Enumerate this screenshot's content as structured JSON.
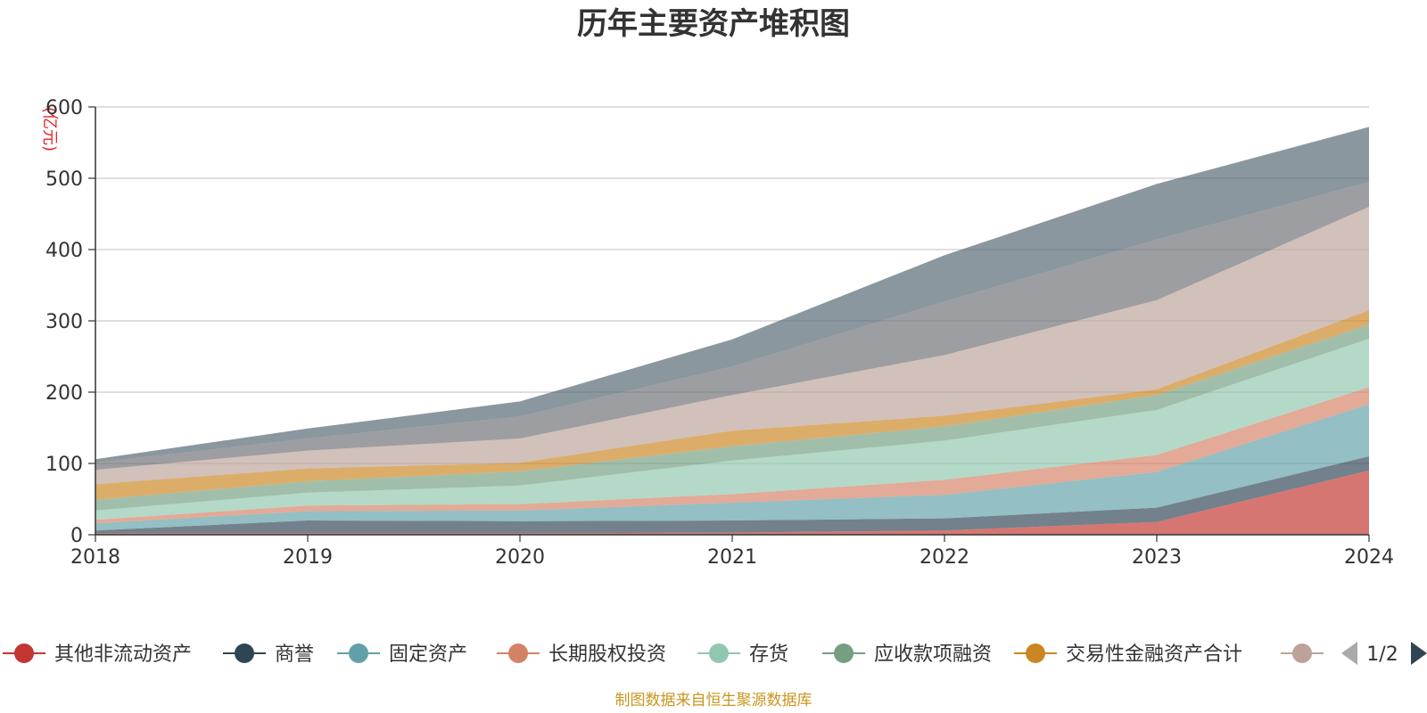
{
  "chart_data": {
    "type": "area",
    "stacked": true,
    "title": "历年主要资产堆积图",
    "unit_label": "(亿元)",
    "x": [
      "2018",
      "2019",
      "2020",
      "2021",
      "2022",
      "2023",
      "2024"
    ],
    "ylim": [
      0,
      600
    ],
    "yticks": [
      0,
      100,
      200,
      300,
      400,
      500,
      600
    ],
    "grid": true,
    "legend_position": "bottom",
    "legend_page": "1/2",
    "source_note": "制图数据来自恒生聚源数据库",
    "series": [
      {
        "name": "其他非流动资产",
        "color": "#c23531",
        "values": [
          2,
          2,
          2,
          3,
          6,
          18,
          90
        ]
      },
      {
        "name": "商誉",
        "color": "#2f4554",
        "values": [
          4,
          18,
          17,
          17,
          17,
          20,
          20
        ]
      },
      {
        "name": "固定资产",
        "color": "#61a0a8",
        "values": [
          10,
          13,
          15,
          25,
          33,
          50,
          73
        ]
      },
      {
        "name": "长期股权投资",
        "color": "#d48265",
        "values": [
          5,
          8,
          9,
          12,
          21,
          24,
          24
        ]
      },
      {
        "name": "存货",
        "color": "#91c7ae",
        "values": [
          13,
          18,
          26,
          47,
          55,
          63,
          68
        ]
      },
      {
        "name": "应收款项融资",
        "color": "#749f83",
        "values": [
          15,
          16,
          20,
          20,
          20,
          21,
          20
        ]
      },
      {
        "name": "交易性金融资产合计",
        "color": "#ca8622",
        "values": [
          22,
          18,
          12,
          22,
          15,
          8,
          20
        ]
      },
      {
        "name": "",
        "color": "#bda29a",
        "values": [
          20,
          25,
          34,
          50,
          85,
          125,
          145
        ]
      },
      {
        "name": "",
        "color": "#6e7074",
        "values": [
          10,
          17,
          31,
          40,
          75,
          85,
          35
        ]
      },
      {
        "name": "",
        "color": "#546570",
        "values": [
          5,
          14,
          21,
          38,
          65,
          78,
          77
        ]
      }
    ]
  },
  "legend_visible": [
    0,
    1,
    2,
    3,
    4,
    5,
    6,
    7
  ],
  "icons": {
    "prev": "prev-page-icon",
    "next": "next-page-icon"
  }
}
